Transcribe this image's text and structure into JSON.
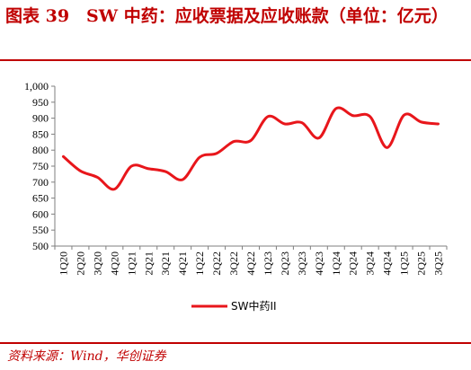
{
  "title": "图表 39　SW 中药：应收票据及应收账款（单位：亿元）",
  "source": "资料来源：Wind，华创证券",
  "colors": {
    "accent": "#c00000",
    "series": "#e8161b",
    "axis": "#7f7f7f"
  },
  "chart_data": {
    "type": "line",
    "categories": [
      "1Q20",
      "2Q20",
      "3Q20",
      "4Q20",
      "1Q21",
      "2Q21",
      "3Q21",
      "4Q21",
      "1Q22",
      "2Q22",
      "3Q22",
      "4Q22",
      "1Q23",
      "2Q23",
      "3Q23",
      "4Q23",
      "1Q24",
      "2Q24",
      "3Q24",
      "4Q24",
      "1Q25",
      "2Q25",
      "3Q25"
    ],
    "series": [
      {
        "name": "SW中药II",
        "values": [
          780,
          735,
          715,
          678,
          750,
          742,
          733,
          708,
          778,
          790,
          827,
          830,
          905,
          882,
          886,
          838,
          930,
          908,
          905,
          808,
          910,
          888,
          882
        ]
      }
    ],
    "ylim": [
      500,
      1000
    ],
    "yticks": [
      500,
      550,
      600,
      650,
      700,
      750,
      800,
      850,
      900,
      950,
      1000
    ],
    "ytick_labels": [
      "500",
      "550",
      "600",
      "650",
      "700",
      "750",
      "800",
      "850",
      "900",
      "950",
      "1,000"
    ],
    "grid": false,
    "legend": "bottom"
  }
}
